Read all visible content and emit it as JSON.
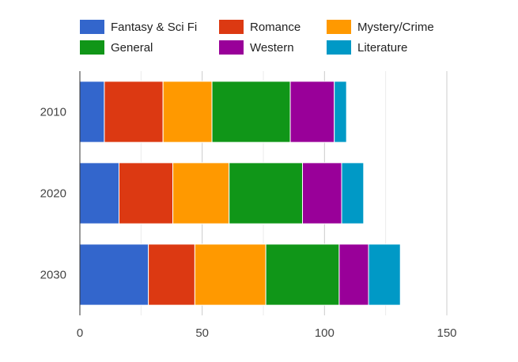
{
  "chart_data": {
    "type": "bar",
    "orientation": "horizontal",
    "stacked": true,
    "categories": [
      "2010",
      "2020",
      "2030"
    ],
    "series": [
      {
        "name": "Fantasy & Sci Fi",
        "color": "#3366cc",
        "values": [
          10,
          16,
          28
        ]
      },
      {
        "name": "Romance",
        "color": "#dc3912",
        "values": [
          24,
          22,
          19
        ]
      },
      {
        "name": "Mystery/Crime",
        "color": "#ff9900",
        "values": [
          20,
          23,
          29
        ]
      },
      {
        "name": "General",
        "color": "#109618",
        "values": [
          32,
          30,
          30
        ]
      },
      {
        "name": "Western",
        "color": "#990099",
        "values": [
          18,
          16,
          12
        ]
      },
      {
        "name": "Literature",
        "color": "#0099c6",
        "values": [
          5,
          9,
          13
        ]
      }
    ],
    "xlim": [
      0,
      150
    ],
    "xticks": [
      0,
      50,
      100,
      150
    ],
    "grid": true,
    "legend_position": "top",
    "title": "",
    "xlabel": "",
    "ylabel": ""
  }
}
